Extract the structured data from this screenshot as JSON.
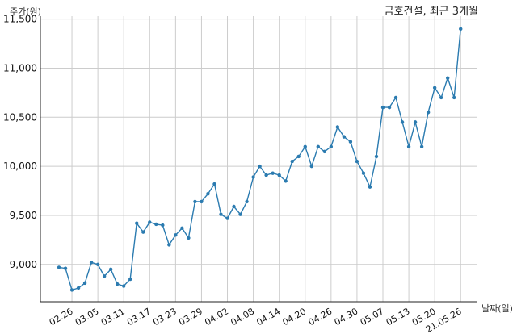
{
  "chart_data": {
    "type": "line",
    "title": "금호건설, 최근 3개월",
    "ylabel": "주가(원)",
    "xlabel": "날짜(일)",
    "ylim": [
      8620,
      11530
    ],
    "y_ticks": [
      9000,
      9500,
      10000,
      10500,
      11000,
      11500
    ],
    "y_tick_labels": [
      "9,000",
      "9,500",
      "10,000",
      "10,500",
      "11,000",
      "11,500"
    ],
    "x_ticks": [
      "02.26",
      "03.05",
      "03.11",
      "03.17",
      "03.23",
      "03.29",
      "04.02",
      "04.08",
      "04.14",
      "04.20",
      "04.26",
      "04.30",
      "05.07",
      "05.13",
      "05.20",
      "21.05.26"
    ],
    "x_tick_index": [
      2,
      6,
      10,
      14,
      18,
      22,
      26,
      30,
      34,
      38,
      42,
      46,
      50,
      54,
      58,
      62
    ],
    "grid": true,
    "color": "#2b7bb0",
    "series": [
      {
        "values": [
          8970,
          8960,
          8740,
          8760,
          8810,
          9020,
          9000,
          8880,
          8950,
          8800,
          8780,
          8850,
          9420,
          9330,
          9430,
          9410,
          9400,
          9200,
          9300,
          9370,
          9270,
          9640,
          9640,
          9720,
          9820,
          9510,
          9470,
          9590,
          9510,
          9640,
          9890,
          10000,
          9910,
          9930,
          9910,
          9850,
          10050,
          10100,
          10200,
          10000,
          10200,
          10150,
          10200,
          10400,
          10300,
          10250,
          10050,
          9930,
          9790,
          10100,
          10600,
          10600,
          10700,
          10450,
          10200,
          10450,
          10200,
          10550,
          10800,
          10700,
          10900,
          10700,
          11400
        ]
      }
    ]
  }
}
